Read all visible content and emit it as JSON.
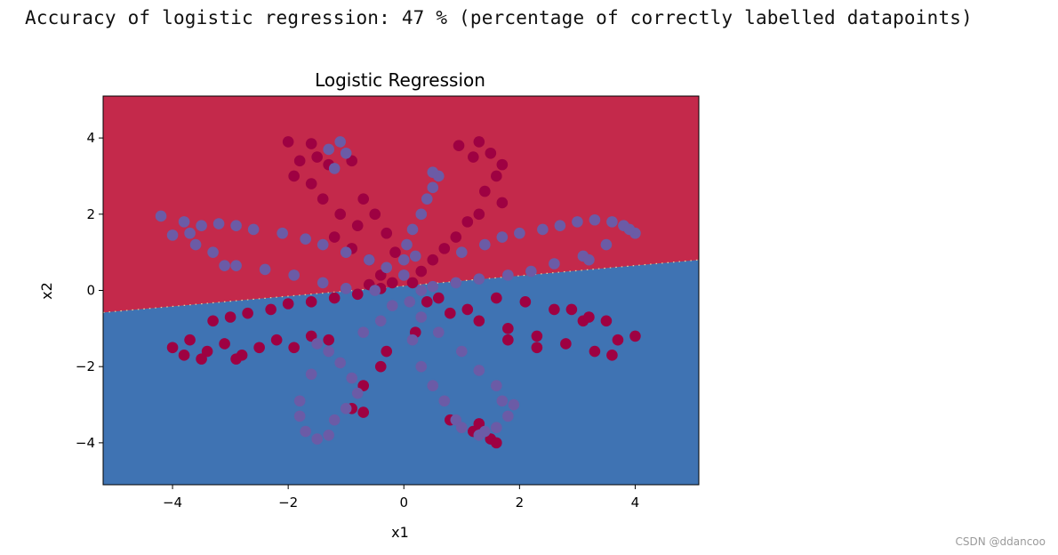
{
  "output_text": "Accuracy of logistic regression: 47 % (percentage of correctly labelled datapoints)",
  "watermark": "CSDN @ddancoo",
  "colors": {
    "region_top": "#c4294b",
    "region_bottom": "#3f73b3",
    "class_0": "#9e0142",
    "class_1": "#6b5ba6",
    "boundary": "#f3e29a"
  },
  "chart_data": {
    "type": "scatter",
    "title": "Logistic Regression",
    "xlabel": "x1",
    "ylabel": "x2",
    "xlim": [
      -5.2,
      5.1
    ],
    "ylim": [
      -5.1,
      5.1
    ],
    "xticks": [
      -4,
      -2,
      0,
      2,
      4
    ],
    "yticks": [
      4,
      2,
      0,
      -2,
      -4
    ],
    "xtick_labels": [
      "−4",
      "−2",
      "0",
      "2",
      "4"
    ],
    "ytick_labels": [
      "4",
      "2",
      "0",
      "−2",
      "−4"
    ],
    "decision_boundary": [
      [
        -5.2,
        -0.58
      ],
      [
        5.1,
        0.8
      ]
    ],
    "grid": false,
    "series": [
      {
        "points": [
          [
            -2.0,
            3.9
          ],
          [
            -1.6,
            3.85
          ],
          [
            -1.8,
            3.4
          ],
          [
            -1.5,
            3.5
          ],
          [
            -1.3,
            3.3
          ],
          [
            -0.9,
            3.4
          ],
          [
            -1.9,
            3.0
          ],
          [
            -1.6,
            2.8
          ],
          [
            -1.4,
            2.4
          ],
          [
            -1.1,
            2.0
          ],
          [
            -0.8,
            1.7
          ],
          [
            -1.2,
            1.4
          ],
          [
            -0.9,
            1.1
          ],
          [
            -0.6,
            0.8
          ],
          [
            -0.4,
            0.4
          ],
          [
            -0.2,
            0.2
          ],
          [
            -0.7,
            2.4
          ],
          [
            -0.5,
            2.0
          ],
          [
            -0.3,
            1.5
          ],
          [
            -0.15,
            1.0
          ],
          [
            0.95,
            3.8
          ],
          [
            1.3,
            3.9
          ],
          [
            1.5,
            3.6
          ],
          [
            1.7,
            3.3
          ],
          [
            1.6,
            3.0
          ],
          [
            1.4,
            2.6
          ],
          [
            1.3,
            2.0
          ],
          [
            1.1,
            1.8
          ],
          [
            0.9,
            1.4
          ],
          [
            0.7,
            1.1
          ],
          [
            0.5,
            0.8
          ],
          [
            0.3,
            0.5
          ],
          [
            0.15,
            0.2
          ],
          [
            1.7,
            2.3
          ],
          [
            1.2,
            3.5
          ],
          [
            -4.0,
            -1.5
          ],
          [
            -3.7,
            -1.3
          ],
          [
            -3.4,
            -1.6
          ],
          [
            -3.1,
            -1.4
          ],
          [
            -2.8,
            -1.7
          ],
          [
            -2.5,
            -1.5
          ],
          [
            -2.2,
            -1.3
          ],
          [
            -1.9,
            -1.5
          ],
          [
            -1.6,
            -1.2
          ],
          [
            -3.3,
            -0.8
          ],
          [
            -3.0,
            -0.7
          ],
          [
            -2.7,
            -0.6
          ],
          [
            -2.3,
            -0.5
          ],
          [
            -2.0,
            -0.35
          ],
          [
            -1.6,
            -0.3
          ],
          [
            -1.2,
            -0.2
          ],
          [
            -0.8,
            -0.1
          ],
          [
            -3.8,
            -1.7
          ],
          [
            -3.5,
            -1.8
          ],
          [
            -2.9,
            -1.8
          ],
          [
            -1.3,
            -1.3
          ],
          [
            -0.4,
            0.05
          ],
          [
            -0.6,
            0.15
          ],
          [
            0.4,
            -0.3
          ],
          [
            0.8,
            -0.6
          ],
          [
            1.3,
            -0.8
          ],
          [
            1.8,
            -1.0
          ],
          [
            2.3,
            -1.2
          ],
          [
            2.8,
            -1.4
          ],
          [
            3.3,
            -1.6
          ],
          [
            3.7,
            -1.3
          ],
          [
            4.0,
            -1.2
          ],
          [
            3.6,
            -1.7
          ],
          [
            3.1,
            -0.8
          ],
          [
            2.6,
            -0.5
          ],
          [
            2.1,
            -0.3
          ],
          [
            1.6,
            -0.2
          ],
          [
            1.1,
            -0.5
          ],
          [
            0.6,
            -0.2
          ],
          [
            3.5,
            -0.8
          ],
          [
            2.3,
            -1.5
          ],
          [
            1.8,
            -1.3
          ],
          [
            3.2,
            -0.7
          ],
          [
            2.9,
            -0.5
          ],
          [
            -0.3,
            -1.6
          ],
          [
            -0.4,
            -2.0
          ],
          [
            -0.7,
            -2.5
          ],
          [
            -0.9,
            -3.1
          ],
          [
            -0.7,
            -3.2
          ],
          [
            0.8,
            -3.4
          ],
          [
            1.2,
            -3.7
          ],
          [
            1.5,
            -3.9
          ],
          [
            1.6,
            -4.0
          ],
          [
            1.3,
            -3.5
          ],
          [
            0.2,
            -1.1
          ]
        ]
      },
      {
        "points": [
          [
            -1.3,
            3.7
          ],
          [
            -1.1,
            3.9
          ],
          [
            -1.0,
            3.6
          ],
          [
            -1.2,
            3.2
          ],
          [
            0.6,
            3.0
          ],
          [
            0.5,
            2.7
          ],
          [
            0.4,
            2.4
          ],
          [
            0.3,
            2.0
          ],
          [
            0.15,
            1.6
          ],
          [
            0.05,
            1.2
          ],
          [
            0.0,
            0.8
          ],
          [
            0.0,
            0.4
          ],
          [
            0.5,
            3.1
          ],
          [
            -0.3,
            0.6
          ],
          [
            0.2,
            0.9
          ],
          [
            -4.2,
            1.95
          ],
          [
            -3.8,
            1.8
          ],
          [
            -3.5,
            1.7
          ],
          [
            -3.2,
            1.75
          ],
          [
            -2.9,
            1.7
          ],
          [
            -2.6,
            1.6
          ],
          [
            -2.1,
            1.5
          ],
          [
            -1.7,
            1.35
          ],
          [
            -1.4,
            1.2
          ],
          [
            -1.0,
            1.0
          ],
          [
            -0.6,
            0.8
          ],
          [
            -4.0,
            1.45
          ],
          [
            -3.6,
            1.2
          ],
          [
            -3.3,
            1.0
          ],
          [
            -2.9,
            0.65
          ],
          [
            -2.4,
            0.55
          ],
          [
            -1.9,
            0.4
          ],
          [
            -1.4,
            0.2
          ],
          [
            -1.0,
            0.05
          ],
          [
            -0.5,
            0.0
          ],
          [
            -3.7,
            1.5
          ],
          [
            -3.1,
            0.65
          ],
          [
            3.0,
            1.8
          ],
          [
            3.3,
            1.85
          ],
          [
            3.6,
            1.8
          ],
          [
            3.8,
            1.7
          ],
          [
            4.0,
            1.5
          ],
          [
            3.9,
            1.6
          ],
          [
            2.7,
            1.7
          ],
          [
            2.4,
            1.6
          ],
          [
            2.0,
            1.5
          ],
          [
            1.7,
            1.4
          ],
          [
            1.4,
            1.2
          ],
          [
            1.0,
            1.0
          ],
          [
            3.1,
            0.9
          ],
          [
            2.6,
            0.7
          ],
          [
            2.2,
            0.5
          ],
          [
            1.8,
            0.4
          ],
          [
            1.3,
            0.3
          ],
          [
            0.9,
            0.2
          ],
          [
            0.5,
            0.1
          ],
          [
            0.3,
            0.0
          ],
          [
            3.5,
            1.2
          ],
          [
            3.2,
            0.8
          ],
          [
            -1.8,
            -2.9
          ],
          [
            -1.8,
            -3.3
          ],
          [
            -1.7,
            -3.7
          ],
          [
            -1.5,
            -3.9
          ],
          [
            -1.3,
            -3.8
          ],
          [
            -1.2,
            -3.4
          ],
          [
            -1.0,
            -3.1
          ],
          [
            -0.8,
            -2.7
          ],
          [
            -0.9,
            -2.3
          ],
          [
            -1.1,
            -1.9
          ],
          [
            -1.3,
            -1.6
          ],
          [
            -1.5,
            -1.4
          ],
          [
            -0.7,
            -1.1
          ],
          [
            -0.4,
            -0.8
          ],
          [
            -0.2,
            -0.4
          ],
          [
            -1.6,
            -2.2
          ],
          [
            0.3,
            -2.0
          ],
          [
            0.5,
            -2.5
          ],
          [
            0.7,
            -2.9
          ],
          [
            0.9,
            -3.4
          ],
          [
            1.0,
            -3.6
          ],
          [
            1.3,
            -3.8
          ],
          [
            1.6,
            -3.6
          ],
          [
            1.8,
            -3.3
          ],
          [
            1.7,
            -2.9
          ],
          [
            1.6,
            -2.5
          ],
          [
            1.3,
            -2.1
          ],
          [
            1.0,
            -1.6
          ],
          [
            0.6,
            -1.1
          ],
          [
            0.3,
            -0.7
          ],
          [
            0.1,
            -0.3
          ],
          [
            1.9,
            -3.0
          ],
          [
            1.4,
            -3.7
          ],
          [
            0.15,
            -1.3
          ]
        ]
      }
    ]
  }
}
